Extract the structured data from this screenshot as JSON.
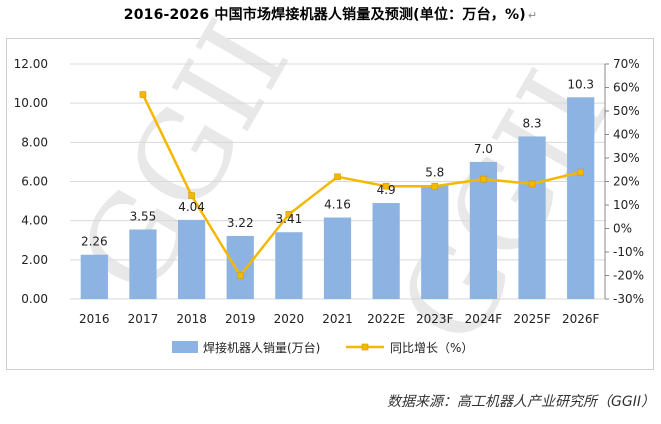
{
  "title": "2016-2026 中国市场焊接机器人销量及预测(单位：万台，%)",
  "title_mark": "↵",
  "source": "数据来源：高工机器人产业研究所（GGII）",
  "watermark": "GGII",
  "colors": {
    "bar": "#8db3e2",
    "line": "#f5b800",
    "marker": "#f5b800",
    "grid": "#d9d9d9"
  },
  "chart_data": {
    "type": "bar",
    "categories": [
      "2016",
      "2017",
      "2018",
      "2019",
      "2020",
      "2021",
      "2022E",
      "2023F",
      "2024F",
      "2025F",
      "2026F"
    ],
    "series": [
      {
        "name": "焊接机器人销量(万台)",
        "type": "bar",
        "axis": "left",
        "values": [
          2.26,
          3.55,
          4.04,
          3.22,
          3.41,
          4.16,
          4.9,
          5.8,
          7.0,
          8.3,
          10.3
        ],
        "labels": [
          "2.26",
          "3.55",
          "4.04",
          "3.22",
          "3.41",
          "4.16",
          "4.9",
          "5.8",
          "7.0",
          "8.3",
          "10.3"
        ]
      },
      {
        "name": "同比增长（%）",
        "type": "line",
        "axis": "right",
        "values": [
          null,
          57,
          14,
          -20,
          6,
          22,
          18,
          18,
          21,
          19,
          24
        ]
      }
    ],
    "y_left": {
      "min": 0,
      "max": 12,
      "step": 2,
      "ticks": [
        "0.00",
        "2.00",
        "4.00",
        "6.00",
        "8.00",
        "10.00",
        "12.00"
      ]
    },
    "y_right": {
      "min": -30,
      "max": 70,
      "step": 10,
      "ticks": [
        "-30%",
        "-20%",
        "-10%",
        "0%",
        "10%",
        "20%",
        "30%",
        "40%",
        "50%",
        "60%",
        "70%"
      ]
    },
    "grid": true,
    "legend_position": "bottom"
  }
}
